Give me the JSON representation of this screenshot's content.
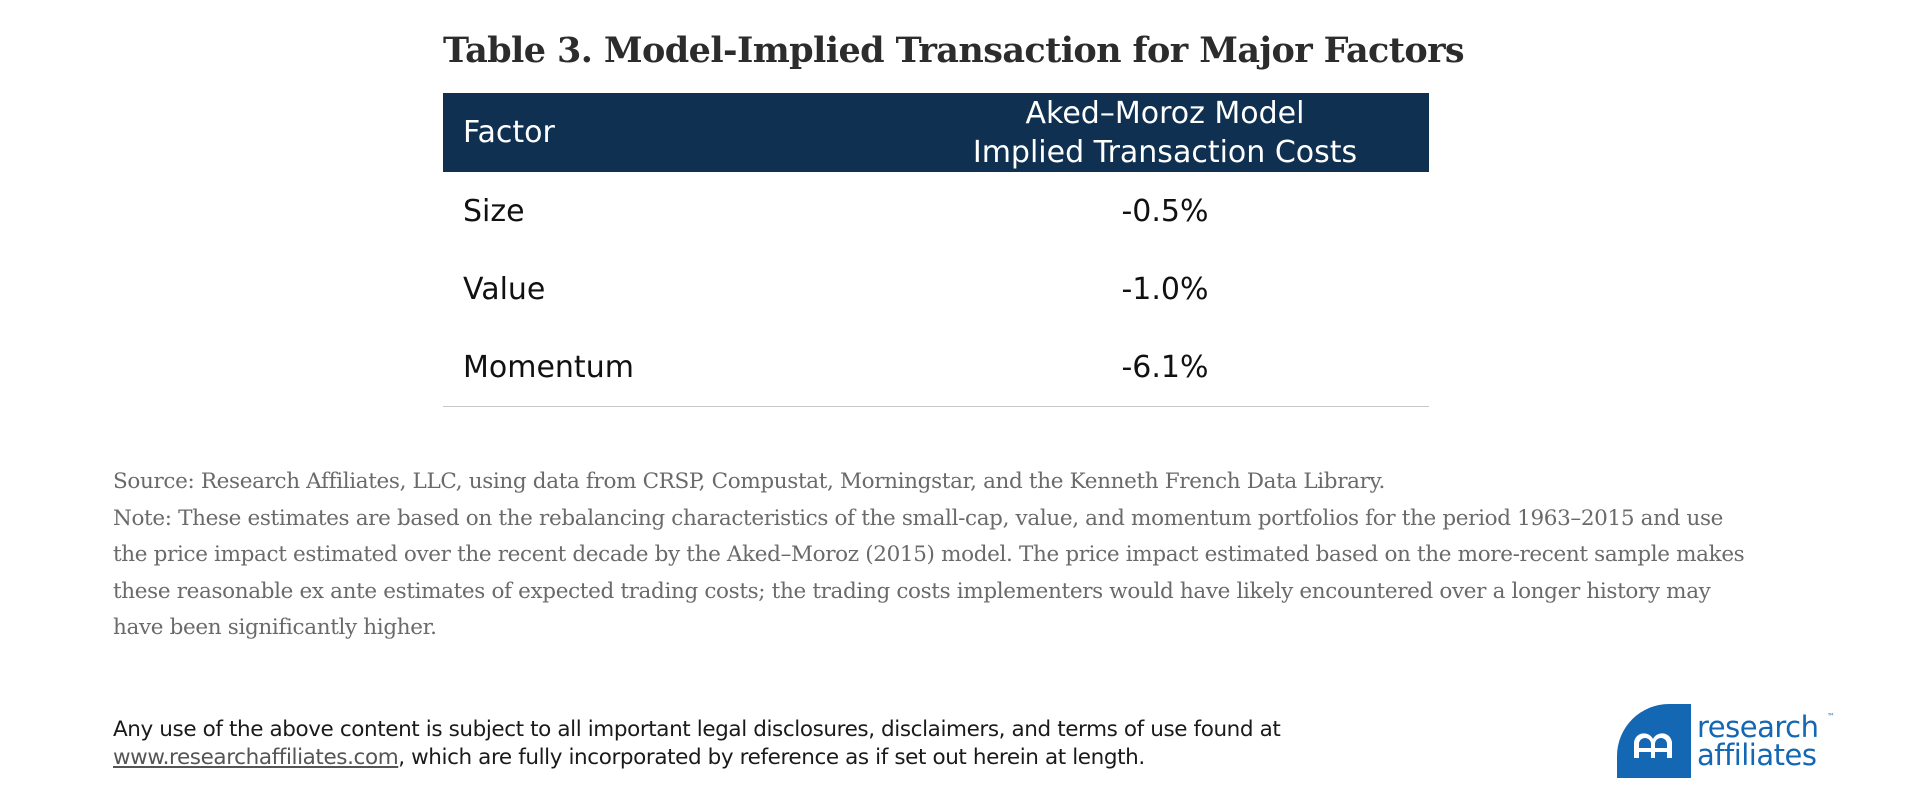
{
  "table": {
    "title": "Table 3. Model-Implied Transaction for Major Factors",
    "header": {
      "factor": "Factor",
      "cost_line1": "Aked–Moroz Model",
      "cost_line2": "Implied Transaction Costs"
    },
    "rows": [
      {
        "factor": "Size",
        "cost": "-0.5%"
      },
      {
        "factor": "Value",
        "cost": "-1.0%"
      },
      {
        "factor": "Momentum",
        "cost": "-6.1%"
      }
    ]
  },
  "notes": {
    "source": "Source: Research Affiliates, LLC, using data from CRSP, Compustat, Morningstar, and the Kenneth French Data Library.",
    "note": "Note: These estimates are based on the rebalancing characteristics of the small-cap, value, and momentum portfolios for the period 1963–2015 and use the price impact estimated over the recent decade by the Aked–Moroz (2015) model. The price impact estimated based on the more-recent sample makes these reasonable ex ante estimates of expected trading costs; the trading costs implementers would have likely encountered over a longer history may have been significantly higher."
  },
  "disclaimer": {
    "line1": "Any use of the above content is subject to all important legal disclosures, disclaimers, and terms of use found at",
    "link": "www.researchaffiliates.com",
    "line2_rest": ", which are fully incorporated by reference as if set out herein at length."
  },
  "logo": {
    "line1": "research",
    "line2": "affiliates",
    "tm": "™",
    "color": "#1467b3"
  },
  "colors": {
    "header_bg": "#0f3050",
    "note_text": "#6a6a6a"
  }
}
